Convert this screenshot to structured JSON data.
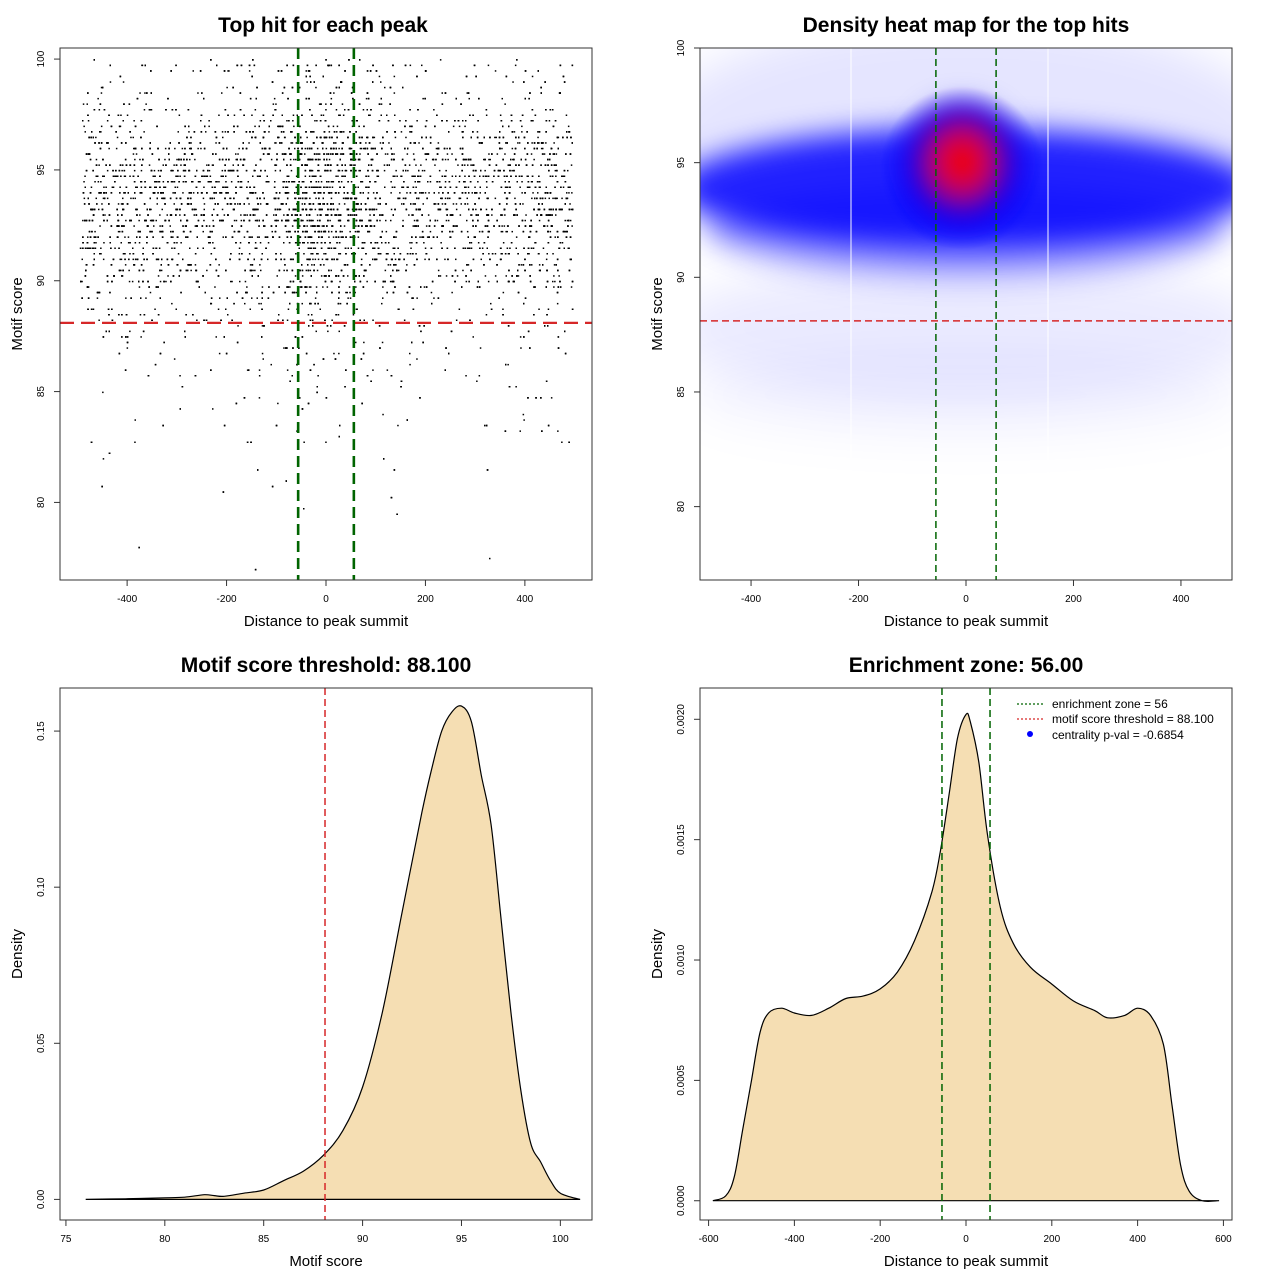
{
  "chart_data": [
    {
      "type": "scatter",
      "title": "Top hit for each peak",
      "xlabel": "Distance to peak summit",
      "ylabel": "Motif score",
      "xlim": [
        -535,
        535
      ],
      "ylim": [
        76.5,
        100.5
      ],
      "x_ticks": [
        "-400",
        "-200",
        "0",
        "200",
        "400"
      ],
      "y_ticks": [
        "80",
        "85",
        "90",
        "95",
        "100"
      ],
      "enrichment_zone": 56,
      "motif_score_threshold": 88.1,
      "zone_color": "#006400",
      "threshold_color": "#d62728",
      "point_color": "#000000",
      "grid": false
    },
    {
      "type": "heatmap",
      "title": "Density heat map for the top hits",
      "xlabel": "Distance to peak summit",
      "ylabel": "Motif score",
      "xlim": [
        -495,
        495
      ],
      "ylim": [
        76.8,
        100
      ],
      "x_ticks": [
        "-400",
        "-200",
        "0",
        "200",
        "400"
      ],
      "y_ticks": [
        "80",
        "85",
        "90",
        "95",
        "100"
      ],
      "density_peak": {
        "x": 0,
        "y": 95
      },
      "color_low": "#ffffff",
      "color_mid": "#0000ff",
      "color_high": "#ff0000",
      "enrichment_zone": 56,
      "motif_score_threshold": 88.1
    },
    {
      "type": "area",
      "title": "Motif score threshold: 88.100",
      "xlabel": "Motif score",
      "ylabel": "Density",
      "xlim": [
        74.7,
        101.6
      ],
      "ylim": [
        -0.0066,
        0.1638
      ],
      "x_ticks": [
        "75",
        "80",
        "85",
        "90",
        "95",
        "100"
      ],
      "y_ticks": [
        "0.00",
        "0.05",
        "0.10",
        "0.15"
      ],
      "fill_color": "#f5deb3",
      "threshold_line": 88.1,
      "points": [
        [
          76,
          0
        ],
        [
          78,
          0.0002
        ],
        [
          80,
          0.0005
        ],
        [
          81,
          0.0007
        ],
        [
          82,
          0.0015
        ],
        [
          82.5,
          0.0012
        ],
        [
          83,
          0.001
        ],
        [
          84,
          0.002
        ],
        [
          85,
          0.003
        ],
        [
          86,
          0.006
        ],
        [
          87,
          0.009
        ],
        [
          88,
          0.014
        ],
        [
          89,
          0.022
        ],
        [
          90,
          0.036
        ],
        [
          91,
          0.06
        ],
        [
          92,
          0.092
        ],
        [
          93,
          0.124
        ],
        [
          93.5,
          0.138
        ],
        [
          94,
          0.15
        ],
        [
          94.5,
          0.156
        ],
        [
          95,
          0.158
        ],
        [
          95.5,
          0.153
        ],
        [
          96,
          0.136
        ],
        [
          96.5,
          0.12
        ],
        [
          97,
          0.09
        ],
        [
          97.5,
          0.06
        ],
        [
          98,
          0.035
        ],
        [
          98.5,
          0.018
        ],
        [
          99,
          0.012
        ],
        [
          99.5,
          0.006
        ],
        [
          100,
          0.002
        ],
        [
          101,
          0
        ]
      ]
    },
    {
      "type": "area",
      "title": "Enrichment zone: 56.00",
      "xlabel": "Distance to peak summit",
      "ylabel": "Density",
      "xlim": [
        -620,
        620
      ],
      "ylim": [
        -8e-05,
        0.00213
      ],
      "x_ticks": [
        "-600",
        "-400",
        "-200",
        "0",
        "200",
        "400",
        "600"
      ],
      "y_ticks": [
        "0.0000",
        "0.0005",
        "0.0010",
        "0.0015",
        "0.0020"
      ],
      "fill_color": "#f5deb3",
      "enrichment_zone": 56,
      "legend": {
        "position": "top-right",
        "entries": [
          "enrichment zone = 56",
          "motif score threshold = 88.100",
          "centrality p-val = -0.6854"
        ],
        "colors": [
          "#006400",
          "#d62728",
          "#0000ff"
        ]
      },
      "points": [
        [
          -590,
          0
        ],
        [
          -560,
          2e-05
        ],
        [
          -540,
          0.0001
        ],
        [
          -520,
          0.0003
        ],
        [
          -500,
          0.0005
        ],
        [
          -480,
          0.0007
        ],
        [
          -460,
          0.00078
        ],
        [
          -430,
          0.0008
        ],
        [
          -400,
          0.00078
        ],
        [
          -360,
          0.00077
        ],
        [
          -320,
          0.0008
        ],
        [
          -280,
          0.00084
        ],
        [
          -240,
          0.00085
        ],
        [
          -200,
          0.00088
        ],
        [
          -160,
          0.00095
        ],
        [
          -120,
          0.00108
        ],
        [
          -80,
          0.00128
        ],
        [
          -60,
          0.00145
        ],
        [
          -40,
          0.00168
        ],
        [
          -20,
          0.00192
        ],
        [
          0,
          0.00202
        ],
        [
          10,
          0.00199
        ],
        [
          30,
          0.00182
        ],
        [
          50,
          0.00152
        ],
        [
          80,
          0.00122
        ],
        [
          110,
          0.00107
        ],
        [
          150,
          0.00097
        ],
        [
          200,
          0.0009
        ],
        [
          250,
          0.00083
        ],
        [
          300,
          0.00079
        ],
        [
          330,
          0.00076
        ],
        [
          370,
          0.00077
        ],
        [
          400,
          0.0008
        ],
        [
          430,
          0.00077
        ],
        [
          460,
          0.00065
        ],
        [
          480,
          0.0004
        ],
        [
          500,
          0.00015
        ],
        [
          520,
          4e-05
        ],
        [
          550,
          0
        ],
        [
          590,
          0
        ]
      ]
    }
  ]
}
